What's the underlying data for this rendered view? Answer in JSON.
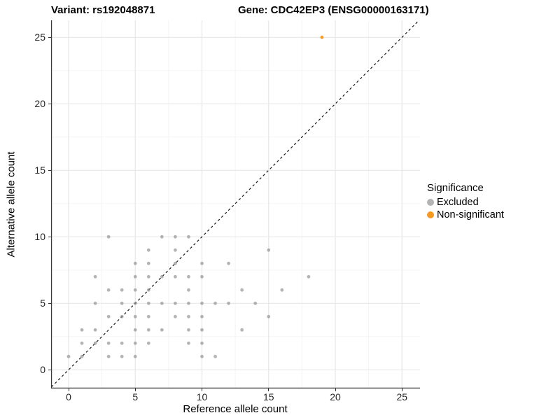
{
  "titles": {
    "variant": "Variant: rs192048871",
    "gene": "Gene: CDC42EP3 (ENSG00000163171)"
  },
  "chart_data": {
    "type": "scatter",
    "title_left": "Variant: rs192048871",
    "title_right": "Gene: CDC42EP3 (ENSG00000163171)",
    "xlabel": "Reference allele count",
    "ylabel": "Alternative allele count",
    "xlim": [
      -1.35,
      26.35
    ],
    "ylim": [
      -1.35,
      26.35
    ],
    "x_ticks": {
      "values": [
        0,
        5,
        10,
        15,
        20,
        25
      ],
      "labels": [
        "0",
        "5",
        "10",
        "15",
        "20",
        "25"
      ]
    },
    "y_ticks": {
      "values": [
        0,
        5,
        10,
        15,
        20,
        25
      ],
      "labels": [
        "0",
        "5",
        "10",
        "15",
        "20",
        "25"
      ]
    },
    "grid": {
      "major": true,
      "minor": true
    },
    "identity_line": {
      "show": true,
      "style": "dashed",
      "equation": "y = x",
      "color": "#1a1a1a"
    },
    "legend": {
      "title": "Significance",
      "position": "right"
    },
    "series": [
      {
        "name": "Excluded",
        "color": "#8c8c8c",
        "opacity": 0.65,
        "points": [
          [
            0,
            1
          ],
          [
            1,
            1
          ],
          [
            1,
            2
          ],
          [
            1,
            3
          ],
          [
            2,
            2
          ],
          [
            2,
            3
          ],
          [
            2,
            5
          ],
          [
            2,
            7
          ],
          [
            3,
            1
          ],
          [
            3,
            2
          ],
          [
            3,
            4
          ],
          [
            3,
            6
          ],
          [
            3,
            10
          ],
          [
            4,
            1
          ],
          [
            4,
            2
          ],
          [
            4,
            4
          ],
          [
            4,
            5
          ],
          [
            4,
            6
          ],
          [
            5,
            1
          ],
          [
            5,
            2
          ],
          [
            5,
            3
          ],
          [
            5,
            4
          ],
          [
            5,
            5
          ],
          [
            5,
            6
          ],
          [
            5,
            7
          ],
          [
            5,
            8
          ],
          [
            6,
            2
          ],
          [
            6,
            3
          ],
          [
            6,
            4
          ],
          [
            6,
            5
          ],
          [
            6,
            6
          ],
          [
            6,
            7
          ],
          [
            6,
            8
          ],
          [
            6,
            9
          ],
          [
            7,
            3
          ],
          [
            7,
            5
          ],
          [
            7,
            7
          ],
          [
            7,
            10
          ],
          [
            8,
            4
          ],
          [
            8,
            5
          ],
          [
            8,
            7
          ],
          [
            8,
            8
          ],
          [
            8,
            9
          ],
          [
            8,
            10
          ],
          [
            9,
            2
          ],
          [
            9,
            3
          ],
          [
            9,
            4
          ],
          [
            9,
            5
          ],
          [
            9,
            6
          ],
          [
            9,
            7
          ],
          [
            9,
            10
          ],
          [
            10,
            1
          ],
          [
            10,
            2
          ],
          [
            10,
            3
          ],
          [
            10,
            4
          ],
          [
            10,
            5
          ],
          [
            10,
            7
          ],
          [
            10,
            8
          ],
          [
            11,
            1
          ],
          [
            11,
            5
          ],
          [
            12,
            5
          ],
          [
            12,
            8
          ],
          [
            13,
            3
          ],
          [
            13,
            6
          ],
          [
            14,
            5
          ],
          [
            15,
            4
          ],
          [
            15,
            9
          ],
          [
            16,
            6
          ],
          [
            18,
            7
          ]
        ]
      },
      {
        "name": "Non-significant",
        "color": "#f59b22",
        "opacity": 1.0,
        "points": [
          [
            19,
            25
          ]
        ]
      }
    ]
  }
}
